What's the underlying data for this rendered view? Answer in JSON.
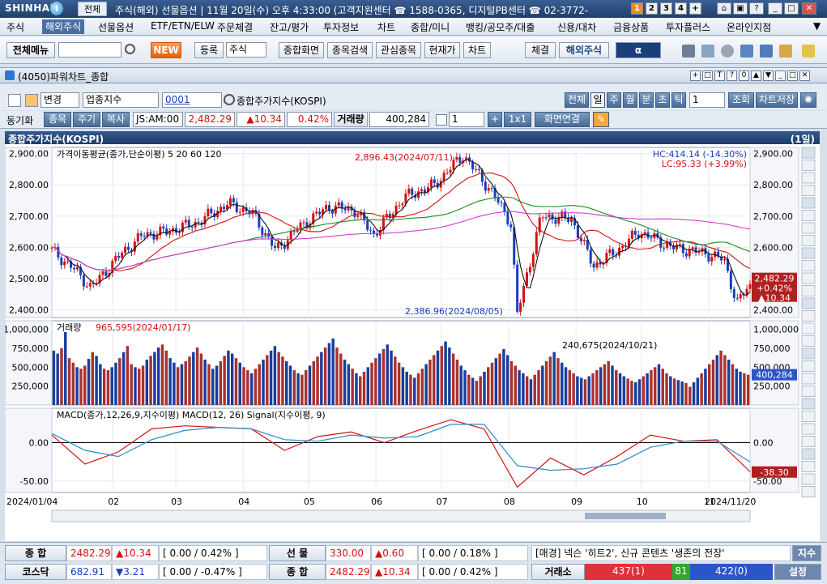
{
  "titlebar": {
    "logo": "SHINHAN",
    "logo_mark": "i",
    "mode": "전체",
    "text": "주식(해외)  선물옵션 | 11월 20일(수) 오후 4:33:00 (고객지원센터 ☎ 1588-0365, 디지털PB센터 ☎ 02-3772-",
    "screens": [
      "1",
      "2",
      "3",
      "4",
      "+"
    ],
    "active_screen": "1"
  },
  "menu": [
    "주식",
    "해외주식",
    "선물옵션",
    "ETF/ETN/ELW",
    "주문체결",
    "잔고/평가",
    "투자정보",
    "차트",
    "종합/미니",
    "뱅킹/공모주/대출",
    "신용/대차",
    "금융상품",
    "투자플러스",
    "온라인지점"
  ],
  "toolbar": {
    "all_menu": "전체메뉴",
    "new": "NEW",
    "register": "등록",
    "stock_select": "주식",
    "buttons": [
      "종합화면",
      "종목검색",
      "관심종목",
      "현재가",
      "차트"
    ],
    "stock_check": "체결",
    "overseas": "해외주식",
    "brand": "α"
  },
  "window": {
    "title": "(4050)파워차트_종합"
  },
  "controls": {
    "change": "변경",
    "category": "업종지수",
    "code": "0001",
    "name": "종합주가지수(KOSPI)",
    "periods": [
      "전체",
      "일",
      "주",
      "월",
      "분",
      "초",
      "틱"
    ],
    "period_count": "1",
    "query": "조회",
    "save": "차트저장",
    "sync": "동기화",
    "tabs": [
      "종목",
      "주기",
      "복사"
    ],
    "market": "JS:AM:00",
    "price": "2,482.29",
    "change_val": "▲10.34",
    "change_pct": "0.42%",
    "volume_label": "거래량",
    "volume": "400,284",
    "count": "1",
    "ratio": "1x1",
    "link": "화면연결"
  },
  "chart_data": [
    {
      "type": "line",
      "title": "종합주가지수(KOSPI)",
      "period_label": "(1일)",
      "legend": "가격이동평균(종가,단순이평) 5 20 60 120",
      "ma_periods": [
        5,
        20,
        60,
        120
      ],
      "ylim": [
        2375,
        2920
      ],
      "yticks": [
        "2,900.00",
        "2,800.00",
        "2,700.00",
        "2,600.00",
        "2,500.00",
        "2,400.00"
      ],
      "x_ticks": [
        "2024/01/04",
        "02",
        "03",
        "04",
        "05",
        "06",
        "07",
        "08",
        "09",
        "10",
        "11",
        "2024/11/20"
      ],
      "annotations": [
        "2,896.43(2024/07/11)",
        "2,386.96(2024/08/05)",
        "HC:414.14 (-14.30%)",
        "LC:95.33 (+3.99%)"
      ],
      "last": {
        "price": "2,482.29",
        "change_pct": "+0.42%",
        "change": "▲10.34"
      },
      "series": [
        {
          "name": "종가",
          "x": [
            "2024-01-04",
            "2024-01-15",
            "2024-01-22",
            "2024-02-05",
            "2024-02-15",
            "2024-02-26",
            "2024-03-11",
            "2024-03-25",
            "2024-04-05",
            "2024-04-16",
            "2024-04-26",
            "2024-05-10",
            "2024-05-22",
            "2024-05-31",
            "2024-06-14",
            "2024-06-28",
            "2024-07-11",
            "2024-07-24",
            "2024-08-02",
            "2024-08-05",
            "2024-08-16",
            "2024-08-30",
            "2024-09-09",
            "2024-09-20",
            "2024-09-30",
            "2024-10-15",
            "2024-10-31",
            "2024-11-08",
            "2024-11-14",
            "2024-11-20"
          ],
          "y": [
            2590,
            2525,
            2470,
            2580,
            2640,
            2650,
            2680,
            2740,
            2710,
            2590,
            2660,
            2730,
            2720,
            2640,
            2760,
            2800,
            2896,
            2780,
            2680,
            2386,
            2700,
            2690,
            2540,
            2590,
            2650,
            2600,
            2580,
            2560,
            2420,
            2482
          ]
        }
      ]
    },
    {
      "type": "bar",
      "title": "거래량",
      "annotations": [
        "965,595(2024/01/17)",
        "240,675(2024/10/21)"
      ],
      "ylim": [
        0,
        1050000
      ],
      "yticks": [
        "1,000,000",
        "750,000",
        "500,000",
        "250,000"
      ],
      "last": "400,284",
      "values": [
        720000,
        680000,
        750000,
        965595,
        620000,
        560000,
        500000,
        480000,
        520000,
        610000,
        700000,
        650000,
        540000,
        480000,
        460000,
        500000,
        560000,
        620000,
        700000,
        780000,
        540000,
        500000,
        480000,
        520000,
        600000,
        650000,
        700000,
        760000,
        800000,
        720000,
        620000,
        560000,
        500000,
        540000,
        580000,
        640000,
        700000,
        760000,
        680000,
        600000,
        540000,
        480000,
        520000,
        580000,
        650000,
        720000,
        680000,
        620000,
        560000,
        500000,
        460000,
        420000,
        480000,
        540000,
        600000,
        660000,
        720000,
        780000,
        700000,
        640000,
        580000,
        520000,
        460000,
        420000,
        400000,
        460000,
        520000,
        580000,
        640000,
        700000,
        760000,
        820000,
        880000,
        760000,
        680000,
        600000,
        540000,
        480000,
        420000,
        380000,
        440000,
        500000,
        560000,
        620000,
        680000,
        740000,
        800000,
        720000,
        640000,
        560000,
        500000,
        440000,
        400000,
        360000,
        420000,
        480000,
        540000,
        600000,
        660000,
        720000,
        780000,
        840000,
        760000,
        680000,
        600000,
        520000,
        460000,
        400000,
        360000,
        320000,
        380000,
        440000,
        500000,
        560000,
        620000,
        680000,
        740000,
        660000,
        580000,
        520000,
        460000,
        420000,
        380000,
        340000,
        400000,
        460000,
        520000,
        580000,
        640000,
        700000,
        620000,
        560000,
        500000,
        460000,
        420000,
        380000,
        360000,
        340000,
        380000,
        420000,
        460000,
        500000,
        540000,
        580000,
        520000,
        460000,
        420000,
        380000,
        350000,
        320000,
        300000,
        340000,
        380000,
        420000,
        460000,
        500000,
        540000,
        480000,
        420000,
        380000,
        350000,
        330000,
        310000,
        290000,
        240675,
        300000,
        360000,
        420000,
        480000,
        540000,
        600000,
        660000,
        720000,
        660000,
        600000,
        540000,
        480000,
        440000,
        420000,
        400284
      ]
    },
    {
      "type": "line",
      "title": "MACD",
      "legend": "MACD(종가,12,26,9,지수이평) MACD(12, 26) Signal(지수이평, 9)",
      "ylim": [
        -65,
        45
      ],
      "yticks": [
        "0.00",
        "-50.00"
      ],
      "last": "-38.30",
      "series": [
        {
          "name": "MACD(12, 26)",
          "x": [
            "01/04",
            "01/20",
            "02/05",
            "02/20",
            "03/05",
            "03/20",
            "04/05",
            "04/20",
            "05/05",
            "05/20",
            "06/05",
            "06/20",
            "07/05",
            "07/20",
            "08/05",
            "08/20",
            "09/05",
            "09/20",
            "10/05",
            "10/20",
            "11/05",
            "11/20"
          ],
          "y": [
            10,
            -28,
            -12,
            18,
            22,
            20,
            18,
            -10,
            8,
            14,
            0,
            16,
            30,
            18,
            -58,
            -20,
            -42,
            -18,
            10,
            2,
            4,
            -38
          ]
        },
        {
          "name": "Signal(지수이평, 9)",
          "x": [
            "01/04",
            "01/20",
            "02/05",
            "02/20",
            "03/05",
            "03/20",
            "04/05",
            "04/20",
            "05/05",
            "05/20",
            "06/05",
            "06/20",
            "07/05",
            "07/20",
            "08/05",
            "08/20",
            "09/05",
            "09/20",
            "10/05",
            "10/20",
            "11/05",
            "11/20"
          ],
          "y": [
            12,
            -10,
            -18,
            4,
            16,
            20,
            18,
            4,
            2,
            10,
            6,
            8,
            24,
            24,
            -30,
            -36,
            -34,
            -28,
            -6,
            2,
            2,
            -25
          ]
        }
      ]
    }
  ],
  "bottom": {
    "row1": {
      "label1": "종  합",
      "v1": "2482.29",
      "c1": "▲10.34",
      "p1": "[ 0.00  /  0.42% ]",
      "label2": "선  물",
      "v2": "330.00",
      "c2": "▲0.60",
      "p2": "[ 0.00  /  0.18% ]",
      "news": "[매경] 넥슨 '히트2', 신규 콘텐츠 '생존의 전장'",
      "news_btn": "지수"
    },
    "row2": {
      "label1": "코스닥",
      "v1": "682.91",
      "c1": "▼3.21",
      "p1": "[ 0.00  /  -0.47% ]",
      "label2": "종  합",
      "v2": "2482.29",
      "c2": "▲10.34",
      "p2": "[ 0.00  /  0.42% ]",
      "label3": "거래소",
      "up": "437(1)",
      "flat": "81",
      "down": "422(0)",
      "settings": "설정"
    }
  }
}
